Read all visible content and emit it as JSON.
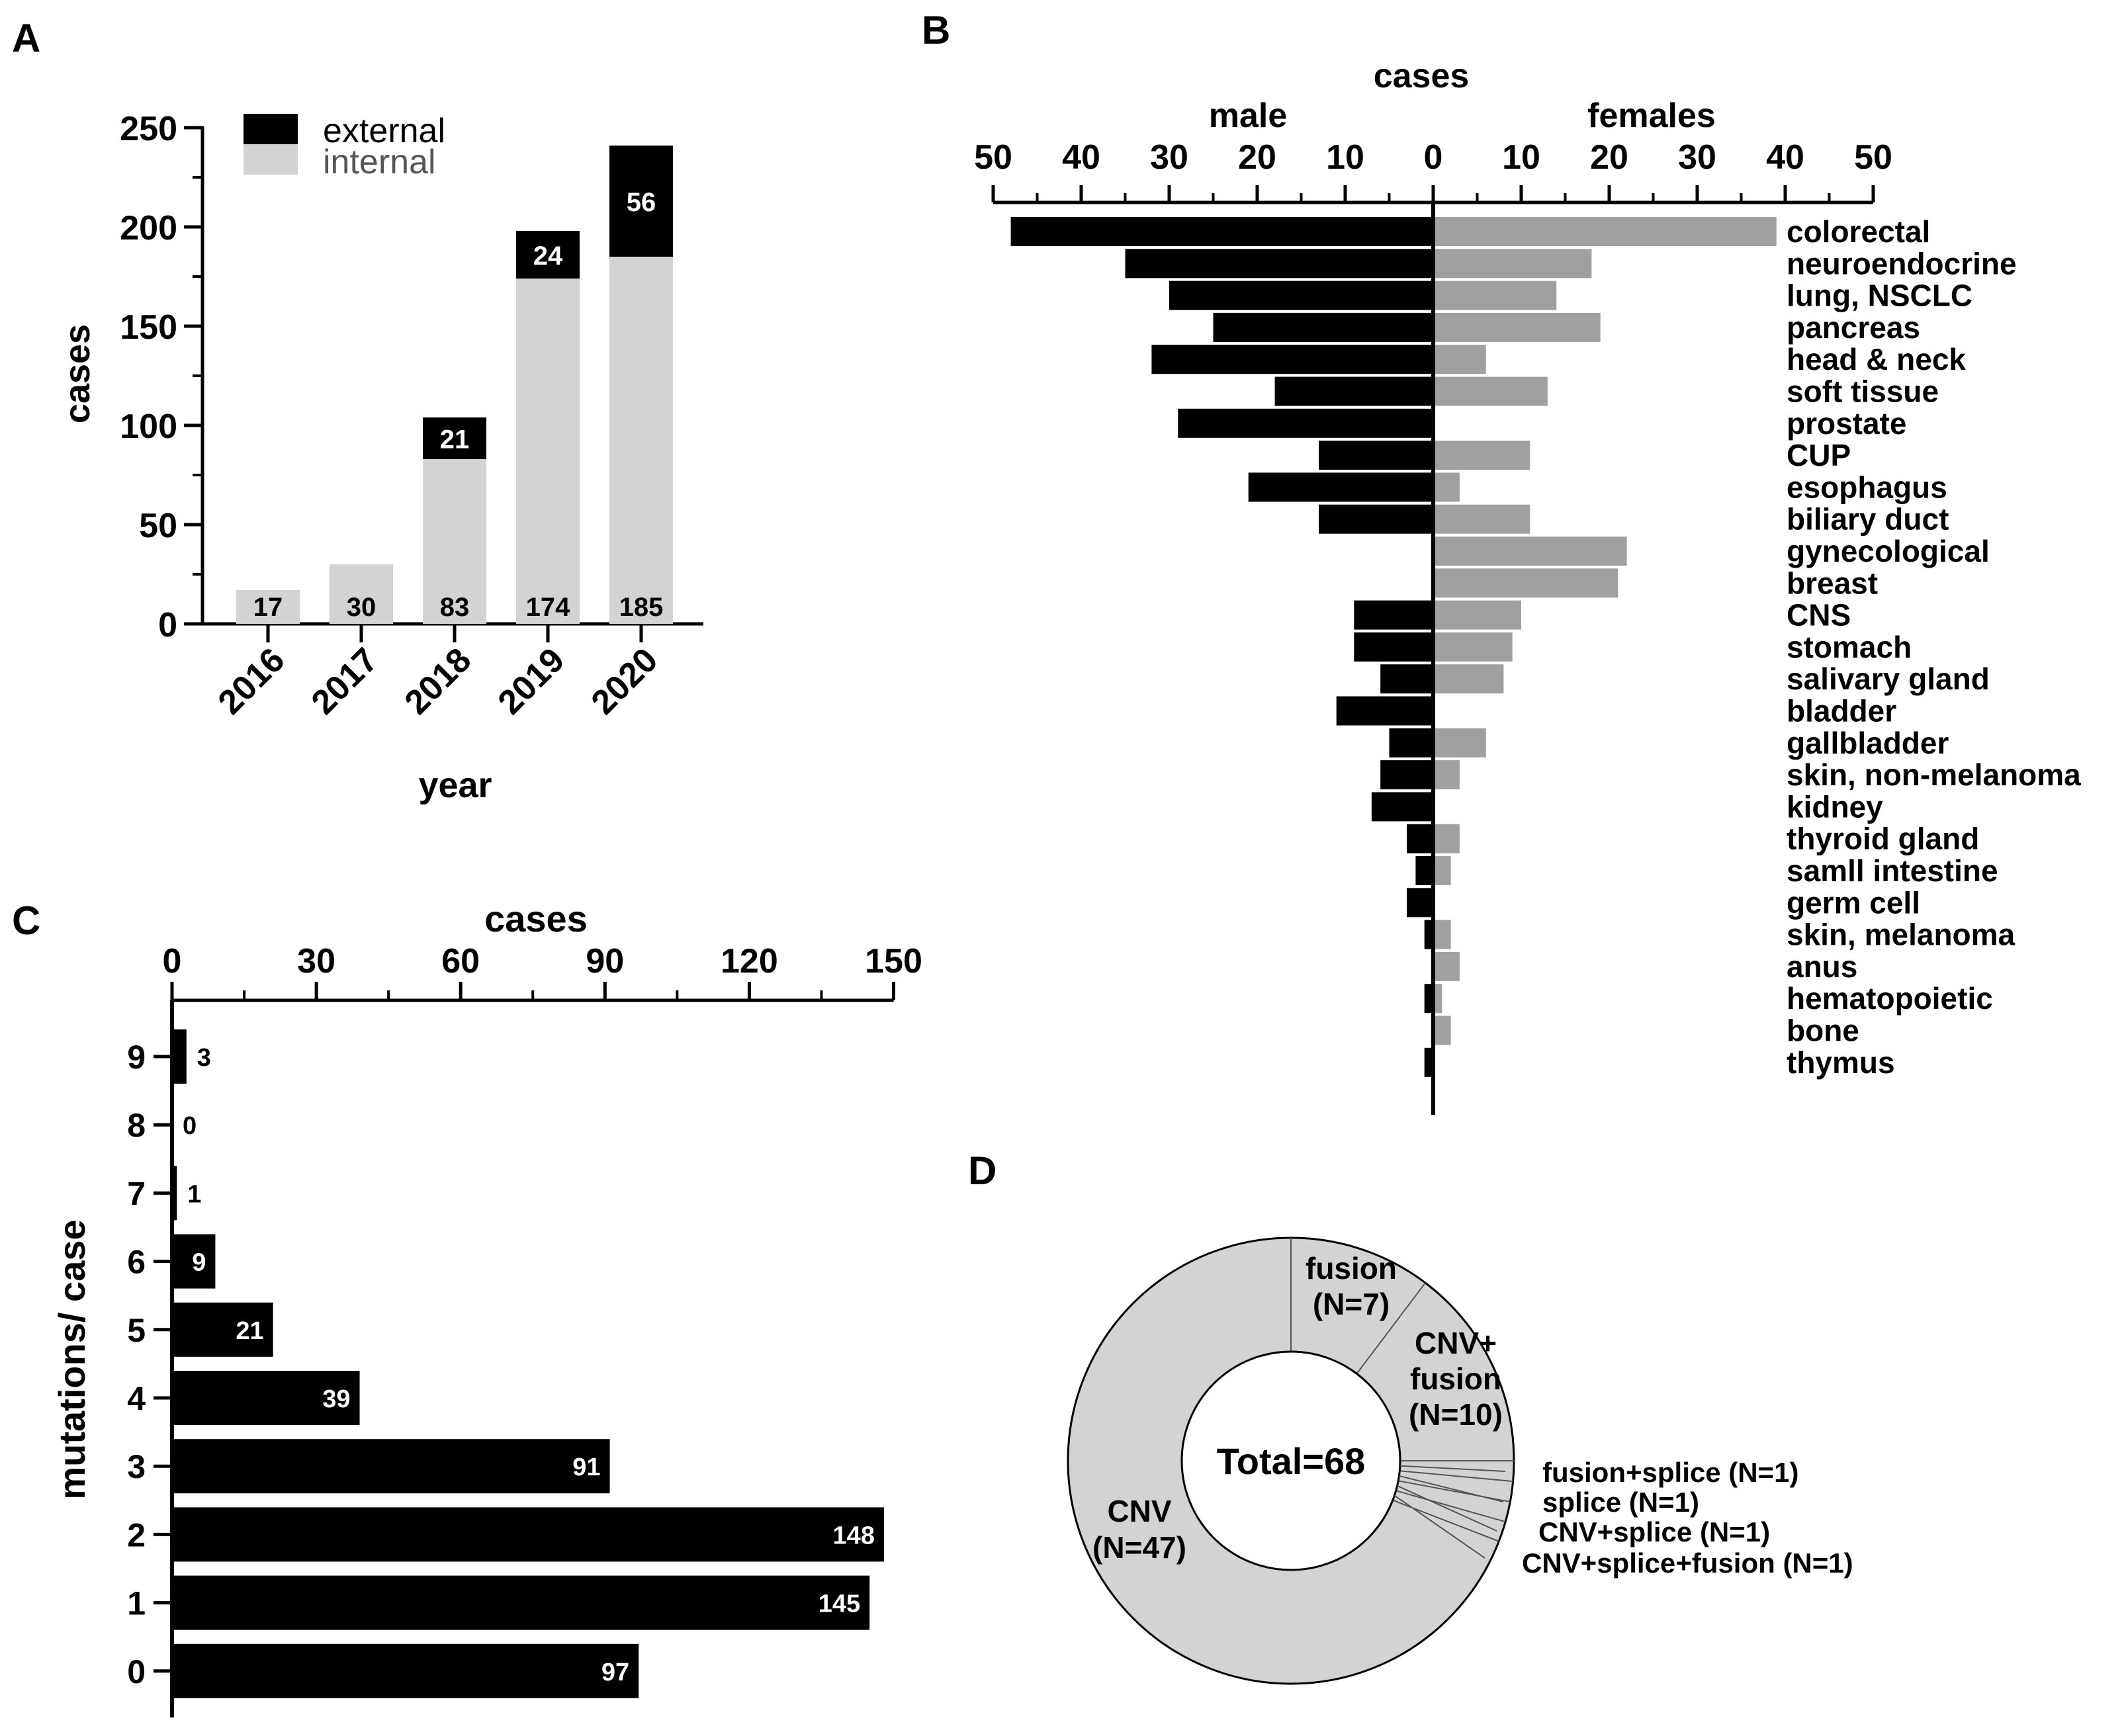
{
  "panel_labels": {
    "a": "A",
    "b": "B",
    "c": "C",
    "d": "D"
  },
  "colors": {
    "black": "#000000",
    "light_gray": "#d3d3d3",
    "mid_gray": "#a0a0a0",
    "white": "#ffffff"
  },
  "chart_data": [
    {
      "type": "bar",
      "panel": "A",
      "stacked": true,
      "categories": [
        "2016",
        "2017",
        "2018",
        "2019",
        "2020"
      ],
      "series": [
        {
          "name": "internal",
          "values": [
            17,
            30,
            83,
            174,
            185
          ],
          "color": "#d3d3d3"
        },
        {
          "name": "external",
          "values": [
            0,
            0,
            21,
            24,
            56
          ],
          "color": "#000000"
        }
      ],
      "data_labels_internal": [
        "17",
        "30",
        "83",
        "174",
        "185"
      ],
      "data_labels_external": [
        "",
        "",
        "21",
        "24",
        "56"
      ],
      "xlabel": "year",
      "ylabel": "cases",
      "ylim": [
        0,
        250
      ],
      "yticks": [
        0,
        50,
        100,
        150,
        200,
        250
      ],
      "legend": [
        "external",
        "internal"
      ],
      "legend_position": "top-left"
    },
    {
      "type": "bar",
      "panel": "B",
      "orientation": "horizontal",
      "title": "cases",
      "left_label": "male",
      "right_label": "females",
      "categories": [
        "colorectal",
        "neuroendocrine",
        "lung, NSCLC",
        "pancreas",
        "head & neck",
        "soft tissue",
        "prostate",
        "CUP",
        "esophagus",
        "biliary duct",
        "gynecological",
        "breast",
        "CNS",
        "stomach",
        "salivary gland",
        "bladder",
        "gallbladder",
        "skin, non-melanoma",
        "kidney",
        "thyroid gland",
        "samll intestine",
        "germ cell",
        "skin, melanoma",
        "anus",
        "hematopoietic",
        "bone",
        "thymus"
      ],
      "series": [
        {
          "name": "male",
          "values": [
            48,
            35,
            30,
            25,
            32,
            18,
            29,
            13,
            21,
            13,
            0,
            0,
            9,
            9,
            6,
            11,
            5,
            6,
            7,
            3,
            2,
            3,
            1,
            0,
            1,
            0,
            1
          ],
          "color": "#000000"
        },
        {
          "name": "females",
          "values": [
            39,
            18,
            14,
            19,
            6,
            13,
            0,
            11,
            3,
            11,
            22,
            21,
            10,
            9,
            8,
            0,
            6,
            3,
            0,
            3,
            2,
            0,
            2,
            3,
            1,
            2,
            0
          ],
          "color": "#a0a0a0"
        }
      ],
      "xlim": [
        0,
        50
      ],
      "xticks": [
        50,
        40,
        30,
        20,
        10,
        0,
        10,
        20,
        30,
        40,
        50
      ]
    },
    {
      "type": "bar",
      "panel": "C",
      "orientation": "horizontal",
      "categories": [
        "9",
        "8",
        "7",
        "6",
        "5",
        "4",
        "3",
        "2",
        "1",
        "0"
      ],
      "values": [
        3,
        0,
        1,
        9,
        21,
        39,
        91,
        148,
        145,
        97
      ],
      "data_labels": [
        "3",
        "0",
        "1",
        "9",
        "21",
        "39",
        "91",
        "148",
        "145",
        "97"
      ],
      "xlabel": "cases",
      "ylabel": "mutations/ case",
      "xlim": [
        0,
        150
      ],
      "xticks": [
        0,
        30,
        60,
        90,
        120,
        150
      ]
    },
    {
      "type": "pie",
      "panel": "D",
      "donut": true,
      "center_label": "Total=68",
      "slices": [
        {
          "name": "fusion",
          "label_lines": [
            "fusion",
            "(N=7)"
          ],
          "value": 7
        },
        {
          "name": "CNV+fusion",
          "label_lines": [
            "CNV+",
            "fusion",
            "(N=10)"
          ],
          "value": 10
        },
        {
          "name": "fusion+splice",
          "label_lines": [
            "fusion+splice (N=1)"
          ],
          "value": 1
        },
        {
          "name": "splice",
          "label_lines": [
            "splice (N=1)"
          ],
          "value": 1
        },
        {
          "name": "CNV+splice",
          "label_lines": [
            "CNV+splice (N=1)"
          ],
          "value": 1
        },
        {
          "name": "CNV+splice+fusion",
          "label_lines": [
            "CNV+splice+fusion (N=1)"
          ],
          "value": 1
        },
        {
          "name": "CNV",
          "label_lines": [
            "CNV",
            "(N=47)"
          ],
          "value": 47
        }
      ],
      "color": "#d3d3d3"
    }
  ]
}
